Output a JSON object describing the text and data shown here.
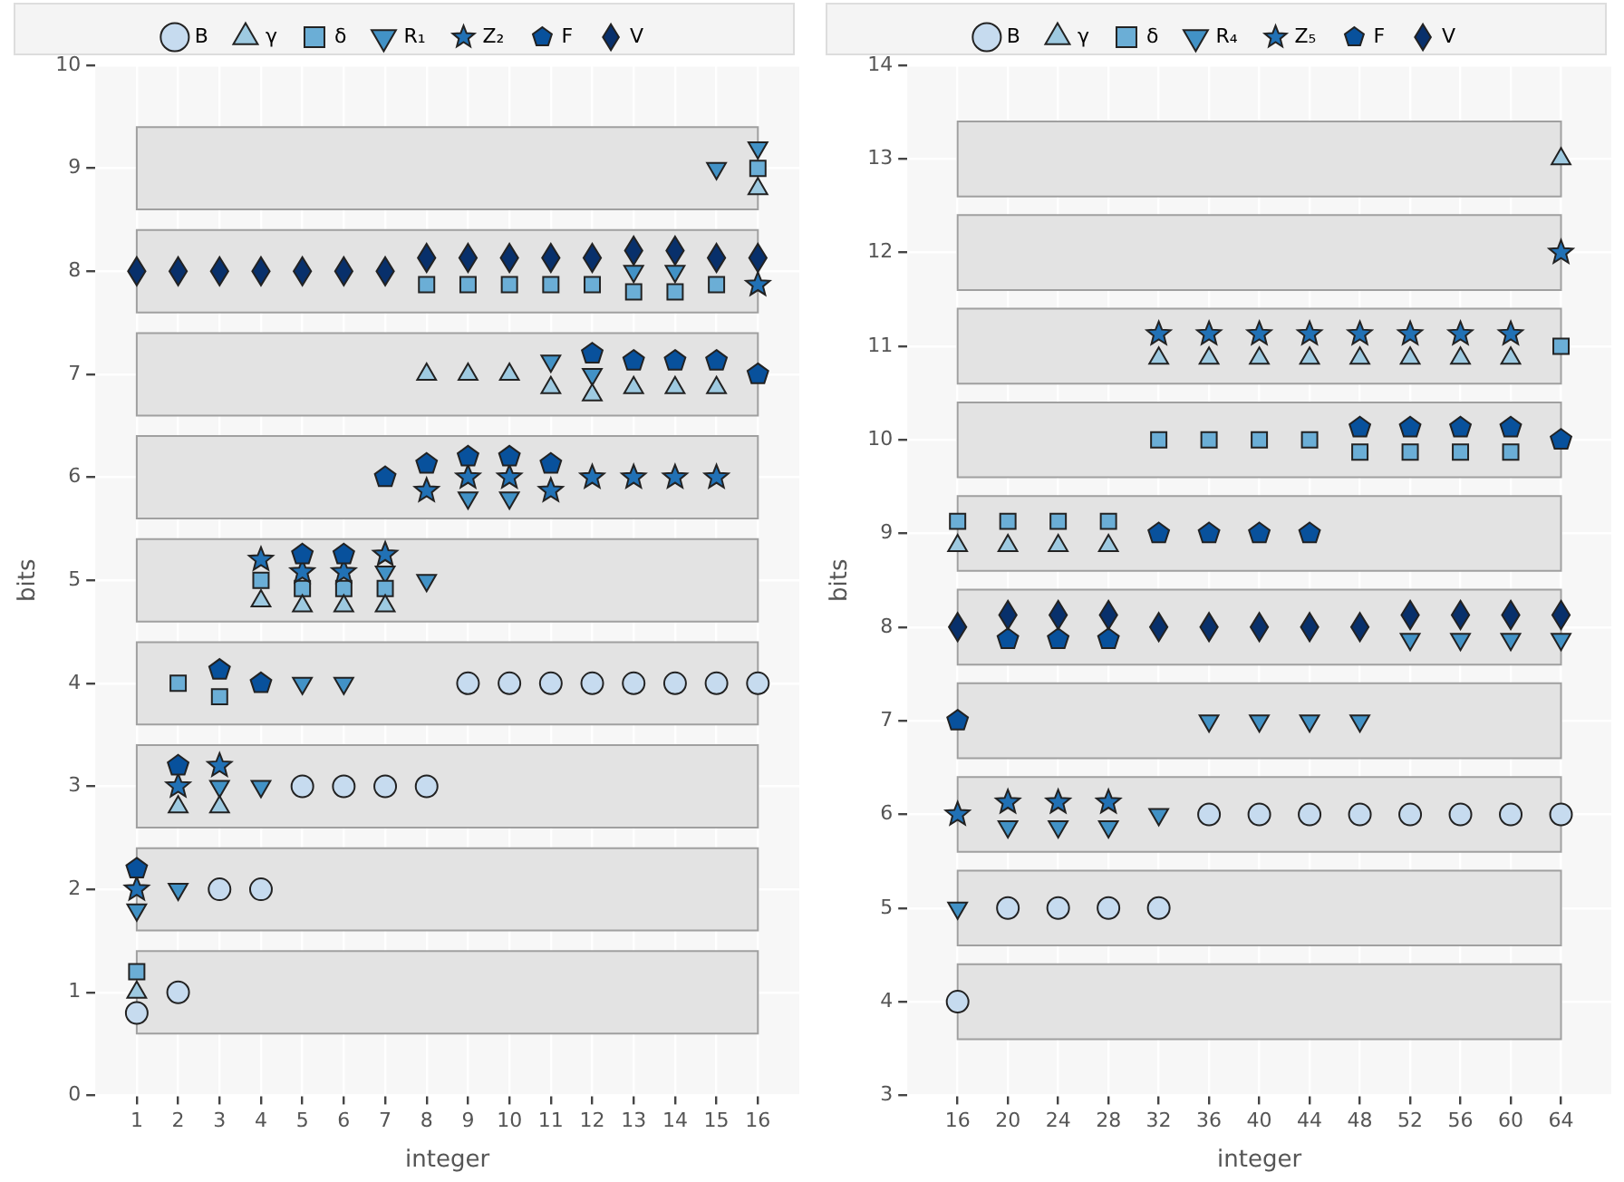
{
  "chart_data": [
    {
      "type": "scatter",
      "xlabel": "integer",
      "ylabel": "bits",
      "x": [
        1,
        2,
        3,
        4,
        5,
        6,
        7,
        8,
        9,
        10,
        11,
        12,
        13,
        14,
        15,
        16
      ],
      "xlim": [
        0,
        17
      ],
      "xticks": [
        1,
        2,
        3,
        4,
        5,
        6,
        7,
        8,
        9,
        10,
        11,
        12,
        13,
        14,
        15,
        16
      ],
      "ylim": [
        0,
        10
      ],
      "yticks": [
        0,
        1,
        2,
        3,
        4,
        5,
        6,
        7,
        8,
        9,
        10
      ],
      "grid": true,
      "legend": "top",
      "bands": [
        {
          "axis": "y",
          "from": 0.6,
          "to": 1.4,
          "color": "#e3e3e3"
        },
        {
          "axis": "y",
          "from": 1.6,
          "to": 2.4,
          "color": "#e3e3e3"
        },
        {
          "axis": "y",
          "from": 2.6,
          "to": 3.4,
          "color": "#e3e3e3"
        },
        {
          "axis": "y",
          "from": 3.6,
          "to": 4.4,
          "color": "#e3e3e3"
        },
        {
          "axis": "y",
          "from": 4.6,
          "to": 5.4,
          "color": "#e3e3e3"
        },
        {
          "axis": "y",
          "from": 5.6,
          "to": 6.4,
          "color": "#e3e3e3"
        },
        {
          "axis": "y",
          "from": 6.6,
          "to": 7.4,
          "color": "#e3e3e3"
        },
        {
          "axis": "y",
          "from": 7.6,
          "to": 8.4,
          "color": "#e3e3e3"
        },
        {
          "axis": "y",
          "from": 8.6,
          "to": 9.4,
          "color": "#e3e3e3"
        }
      ],
      "series": [
        {
          "name": "B",
          "color": "#c6dbef",
          "marker": "circle",
          "values": [
            0.8,
            1,
            2,
            2,
            3,
            3,
            3,
            3,
            4,
            4,
            4,
            4,
            4,
            4,
            4,
            4
          ]
        },
        {
          "name": "γ",
          "color": "#9ecae1",
          "marker": "triangle",
          "values": [
            1,
            2.8,
            2.8,
            4.8,
            4.75,
            4.75,
            4.75,
            7,
            7,
            7,
            6.87,
            6.8,
            6.87,
            6.87,
            6.87,
            8.8
          ]
        },
        {
          "name": "δ",
          "color": "#6baed6",
          "marker": "square",
          "values": [
            1.2,
            4,
            3.87,
            5,
            4.92,
            4.92,
            4.92,
            7.87,
            7.87,
            7.87,
            7.87,
            7.87,
            7.8,
            7.8,
            7.87,
            9
          ]
        },
        {
          "name": "R₁",
          "color": "#4292c6",
          "marker": "triangle-down",
          "values": [
            1.8,
            2,
            3,
            3,
            4,
            4,
            5.08,
            5,
            5.8,
            5.8,
            7.13,
            7,
            8,
            8,
            9,
            9.2
          ]
        },
        {
          "name": "Z₂",
          "color": "#2171b5",
          "marker": "star",
          "values": [
            2,
            3,
            3.2,
            5.2,
            5.08,
            5.08,
            5.25,
            5.87,
            6,
            6,
            5.87,
            6,
            6,
            6,
            6,
            7.87
          ]
        },
        {
          "name": "F",
          "color": "#08519c",
          "values": [
            2.2,
            3.2,
            4.13,
            4,
            5.25,
            5.25,
            6,
            6.13,
            6.2,
            6.2,
            6.13,
            7.2,
            7.13,
            7.13,
            7.13,
            7
          ]
        },
        {
          "name": "V",
          "color": "#08306b",
          "marker": "diamond",
          "values": [
            8,
            8,
            8,
            8,
            8,
            8,
            8,
            8.13,
            8.13,
            8.13,
            8.13,
            8.13,
            8.2,
            8.2,
            8.13,
            8.13
          ]
        }
      ]
    },
    {
      "type": "scatter",
      "xlabel": "integer",
      "ylabel": "bits",
      "x": [
        16,
        20,
        24,
        28,
        32,
        36,
        40,
        44,
        48,
        52,
        56,
        60,
        64
      ],
      "xlim": [
        12,
        68
      ],
      "xticks": [
        16,
        20,
        24,
        28,
        32,
        36,
        40,
        44,
        48,
        52,
        56,
        60,
        64
      ],
      "ylim": [
        3,
        14
      ],
      "yticks": [
        3,
        4,
        5,
        6,
        7,
        8,
        9,
        10,
        11,
        12,
        13,
        14
      ],
      "grid": true,
      "legend": "top",
      "bands": [
        {
          "axis": "y",
          "from": 3.6,
          "to": 4.4,
          "color": "#e3e3e3"
        },
        {
          "axis": "y",
          "from": 4.6,
          "to": 5.4,
          "color": "#e3e3e3"
        },
        {
          "axis": "y",
          "from": 5.6,
          "to": 6.4,
          "color": "#e3e3e3"
        },
        {
          "axis": "y",
          "from": 6.6,
          "to": 7.4,
          "color": "#e3e3e3"
        },
        {
          "axis": "y",
          "from": 7.6,
          "to": 8.4,
          "color": "#e3e3e3"
        },
        {
          "axis": "y",
          "from": 8.6,
          "to": 9.4,
          "color": "#e3e3e3"
        },
        {
          "axis": "y",
          "from": 9.6,
          "to": 10.4,
          "color": "#e3e3e3"
        },
        {
          "axis": "y",
          "from": 10.6,
          "to": 11.4,
          "color": "#e3e3e3"
        },
        {
          "axis": "y",
          "from": 11.6,
          "to": 12.4,
          "color": "#e3e3e3"
        },
        {
          "axis": "y",
          "from": 12.6,
          "to": 13.4,
          "color": "#e3e3e3"
        }
      ],
      "series": [
        {
          "name": "B",
          "color": "#c6dbef",
          "marker": "circle",
          "values": [
            4,
            5,
            5,
            5,
            5,
            6,
            6,
            6,
            6,
            6,
            6,
            6,
            6
          ]
        },
        {
          "name": "γ",
          "color": "#9ecae1",
          "marker": "triangle",
          "values": [
            8.87,
            8.87,
            8.87,
            8.87,
            10.87,
            10.87,
            10.87,
            10.87,
            10.87,
            10.87,
            10.87,
            10.87,
            13
          ]
        },
        {
          "name": "δ",
          "color": "#6baed6",
          "marker": "square",
          "values": [
            9.13,
            9.13,
            9.13,
            9.13,
            10,
            10,
            10,
            10,
            9.87,
            9.87,
            9.87,
            9.87,
            11
          ]
        },
        {
          "name": "R₄",
          "color": "#4292c6",
          "marker": "triangle-down",
          "values": [
            5,
            5.87,
            5.87,
            5.87,
            6,
            7,
            7,
            7,
            7,
            7.87,
            7.87,
            7.87,
            7.87
          ]
        },
        {
          "name": "Z₅",
          "color": "#2171b5",
          "marker": "star",
          "values": [
            6,
            6.13,
            6.13,
            6.13,
            11.13,
            11.13,
            11.13,
            11.13,
            11.13,
            11.13,
            11.13,
            11.13,
            12
          ]
        },
        {
          "name": "F",
          "color": "#08519c",
          "values": [
            7,
            7.87,
            7.87,
            7.87,
            9,
            9,
            9,
            9,
            10.13,
            10.13,
            10.13,
            10.13,
            10
          ]
        },
        {
          "name": "V",
          "color": "#08306b",
          "marker": "diamond",
          "values": [
            8,
            8.13,
            8.13,
            8.13,
            8,
            8,
            8,
            8,
            8,
            8.13,
            8.13,
            8.13,
            8.13
          ]
        }
      ]
    }
  ]
}
